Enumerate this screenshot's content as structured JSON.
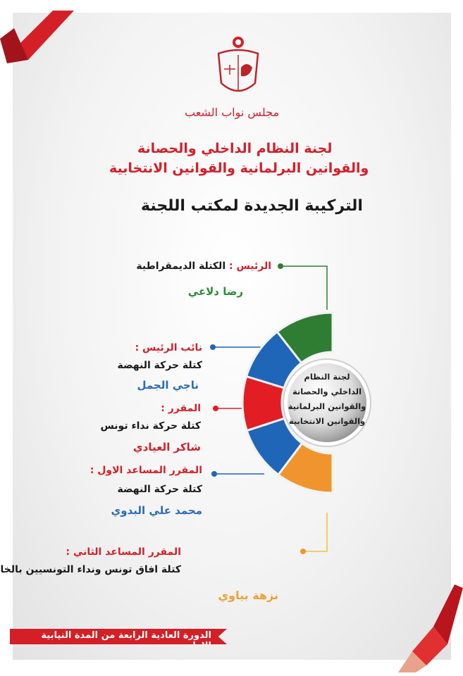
{
  "header": {
    "org_name": "مجلس نواب الشعب",
    "committee_line1": "لجنة النظام الداخلي والحصانة",
    "committee_line2": "والقوانين البرلمانية والقوانين الانتخابية",
    "subtitle": "التركيبة الجديدة لمكتب اللجنة"
  },
  "center": {
    "lines": [
      "لجنة النظام",
      "الداخلي والحصانة",
      "والقوانين البرلمانية",
      "والقوانين الانتخابية"
    ]
  },
  "members": [
    {
      "role": "الرئيس :",
      "bloc": "الكتلة الديمقراطية",
      "name": "رضا دلاعي",
      "color": "#2e7d32"
    },
    {
      "role": "نائب الرئيس :",
      "bloc": "كتلة حركة النهضة",
      "name": "ناجي الجمل",
      "color": "#1f66b8"
    },
    {
      "role": "المقرر :",
      "bloc": "كتلة حركة نداء تونس",
      "name": "شاكر العيادي",
      "color": "#e21d23"
    },
    {
      "role": "المقرر المساعد الاول :",
      "bloc": "كتلة حركة النهضة",
      "name": "محمد علي البدوي",
      "color": "#1f66b8"
    },
    {
      "role": "المقرر المساعد الثاني :",
      "bloc": "كتلة افاق تونس ونداء التونسيين بالخارج",
      "name": "نزهة بياوي",
      "color": "#f0952e"
    }
  ],
  "footer": {
    "session": "الدورة العادية الرابعة من المدة النيابية الاولى"
  },
  "colors": {
    "accent_red": "#d41f26",
    "green": "#2e7d32",
    "blue": "#1f66b8",
    "red": "#e21d23",
    "orange": "#f0952e"
  }
}
